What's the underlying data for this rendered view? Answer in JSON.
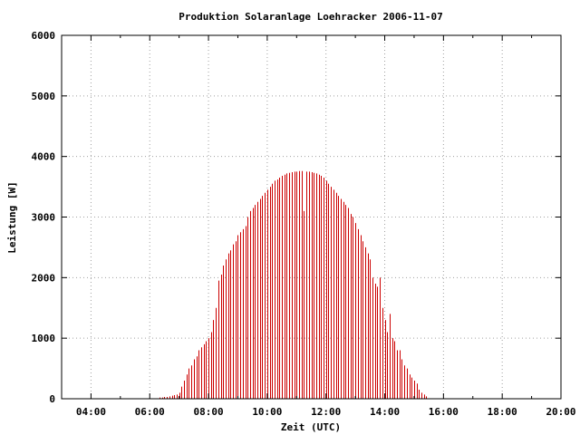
{
  "chart_data": {
    "type": "bar",
    "title": "Produktion Solaranlage Loehracker 2006-11-07",
    "xlabel": "Zeit (UTC)",
    "ylabel": "Leistung [W]",
    "xlim_hours": [
      3,
      20
    ],
    "ylim": [
      0,
      6000
    ],
    "x_ticks": [
      "04:00",
      "06:00",
      "08:00",
      "10:00",
      "12:00",
      "14:00",
      "16:00",
      "18:00",
      "20:00"
    ],
    "x_tick_hours": [
      4,
      6,
      8,
      10,
      12,
      14,
      16,
      18,
      20
    ],
    "y_ticks": [
      "0",
      "1000",
      "2000",
      "3000",
      "4000",
      "5000",
      "6000"
    ],
    "y_tick_values": [
      0,
      1000,
      2000,
      3000,
      4000,
      5000,
      6000
    ],
    "grid": true,
    "bar_color": "#cc0000",
    "series": [
      {
        "start_time": "06:20",
        "interval_minutes": 5,
        "values": [
          20,
          20,
          30,
          30,
          40,
          50,
          60,
          70,
          100,
          200,
          300,
          400,
          500,
          550,
          650,
          700,
          800,
          850,
          900,
          950,
          1000,
          1100,
          1300,
          1500,
          1950,
          2050,
          2200,
          2300,
          2400,
          2450,
          2550,
          2600,
          2700,
          2750,
          2800,
          2850,
          3000,
          3100,
          3150,
          3200,
          3250,
          3300,
          3350,
          3400,
          3450,
          3500,
          3550,
          3600,
          3620,
          3650,
          3680,
          3700,
          3720,
          3730,
          3740,
          3750,
          3750,
          3760,
          3760,
          3100,
          3750,
          3750,
          3740,
          3730,
          3720,
          3700,
          3680,
          3650,
          3600,
          3550,
          3500,
          3450,
          3400,
          3350,
          3300,
          3250,
          3200,
          3150,
          3050,
          3000,
          2900,
          2800,
          2700,
          2600,
          2500,
          2400,
          2300,
          2000,
          1900,
          1850,
          2000,
          1500,
          1300,
          1100,
          1400,
          1000,
          950,
          800,
          800,
          650,
          550,
          500,
          400,
          350,
          300,
          250,
          150,
          100,
          70,
          40
        ]
      }
    ]
  }
}
